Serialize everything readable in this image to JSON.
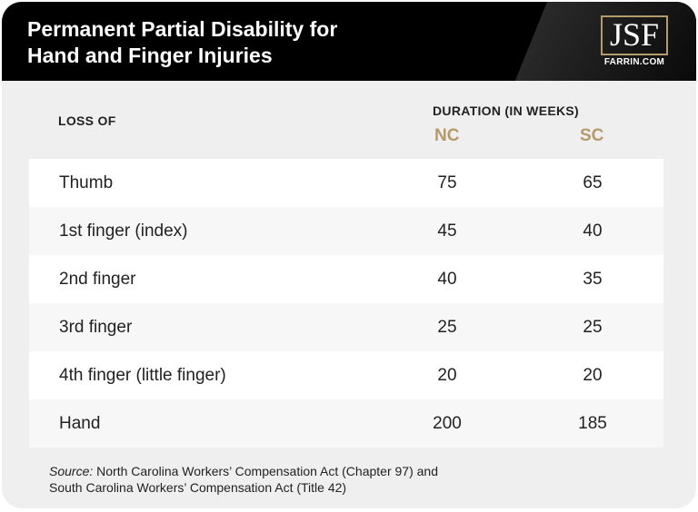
{
  "header": {
    "title_line1": "Permanent Partial Disability for",
    "title_line2": "Hand and Finger Injuries",
    "logo_text": "JSF",
    "logo_sub": "FARRIN.COM"
  },
  "table": {
    "col_loss": "LOSS OF",
    "col_duration": "DURATION (IN WEEKS)",
    "col_nc": "NC",
    "col_sc": "SC",
    "rows": [
      {
        "loss": "Thumb",
        "nc": "75",
        "sc": "65"
      },
      {
        "loss": "1st finger (index)",
        "nc": "45",
        "sc": "40"
      },
      {
        "loss": "2nd finger",
        "nc": "40",
        "sc": "35"
      },
      {
        "loss": "3rd finger",
        "nc": "25",
        "sc": "25"
      },
      {
        "loss": "4th finger (little finger)",
        "nc": "20",
        "sc": "20"
      },
      {
        "loss": "Hand",
        "nc": "200",
        "sc": "185"
      }
    ]
  },
  "source": {
    "label": "Source:",
    "line1": " North Carolina Workers’ Compensation Act (Chapter 97) and",
    "line2": "South Carolina Workers’ Compensation Act (Title 42)"
  },
  "colors": {
    "accent": "#b39b6b",
    "header_bg": "#000000",
    "card_bg": "#efefef"
  }
}
